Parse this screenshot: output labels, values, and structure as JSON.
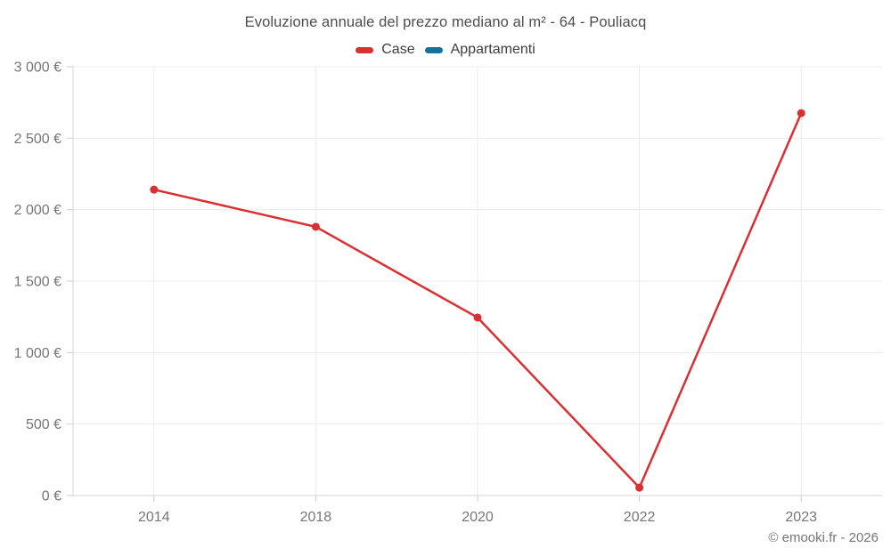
{
  "footer": {
    "copyright": "© emooki.fr - 2026"
  },
  "legend": {
    "items": [
      {
        "label": "Case",
        "color": "#d93034"
      },
      {
        "label": "Appartamenti",
        "color": "#1272a2"
      }
    ]
  },
  "chart_data": {
    "type": "line",
    "title": "Evoluzione annuale del prezzo mediano al m² - 64 - Pouliacq",
    "categories": [
      "2014",
      "2018",
      "2020",
      "2022",
      "2023"
    ],
    "series": [
      {
        "name": "Case",
        "key": "case",
        "color": "#d93034",
        "values": [
          2140,
          1880,
          1245,
          55,
          2675
        ]
      },
      {
        "name": "Appartamenti",
        "key": "appartamenti",
        "color": "#1272a2",
        "values": []
      }
    ],
    "xlabel": "",
    "ylabel": "",
    "ylim": [
      0,
      3000
    ],
    "yticks": [
      {
        "value": 0,
        "label": "0 €"
      },
      {
        "value": 500,
        "label": "500 €"
      },
      {
        "value": 1000,
        "label": "1 000 €"
      },
      {
        "value": 1500,
        "label": "1 500 €"
      },
      {
        "value": 2000,
        "label": "2 000 €"
      },
      {
        "value": 2500,
        "label": "2 500 €"
      },
      {
        "value": 3000,
        "label": "3 000 €"
      }
    ],
    "grid": true,
    "legend_position": "top-center"
  },
  "style": {
    "grid_color": "#ececec",
    "axis_color": "#d4d4d4",
    "tick_color": "#cfcfcf",
    "label_color": "#757575",
    "title_color": "#4d4d4d",
    "legend_text_color": "#3d3d3d",
    "background": "#ffffff"
  }
}
